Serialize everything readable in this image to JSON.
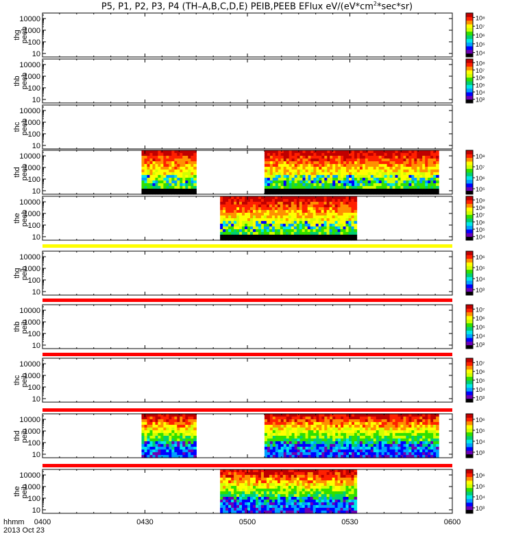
{
  "title": {
    "prefix": "P5, P1, P2, P3, P4 (TH–A,B,C,D,E) PEIB,PEEB EFlux eV/(eV*cm",
    "sup": "2",
    "suffix": "*sec*sr)"
  },
  "colorscale": [
    "#000000",
    "#6e00b4",
    "#0000ff",
    "#00a0ff",
    "#00e8e8",
    "#00d070",
    "#30e000",
    "#d0ff00",
    "#ffff00",
    "#ff9000",
    "#ff2000",
    "#c00000"
  ],
  "panels": [
    {
      "name": "thg-peeb",
      "ylabel": [
        "thg",
        "peeb"
      ],
      "yticks": [
        "10",
        "100",
        "1000",
        "10000"
      ],
      "cbar": {
        "ticks": [
          "10⁴",
          "10⁵",
          "10⁶",
          "10⁷",
          "10⁸"
        ]
      },
      "blocks": []
    },
    {
      "name": "thb-peeb",
      "ylabel": [
        "thb",
        "peeb"
      ],
      "yticks": [
        "10",
        "100",
        "1000",
        "10000"
      ],
      "cbar": {
        "ticks": [
          "10³",
          "10⁴",
          "10⁵",
          "10⁶",
          "10⁷",
          "10⁸"
        ]
      },
      "blocks": []
    },
    {
      "name": "thc-peeb",
      "ylabel": [
        "thc",
        "peeb"
      ],
      "yticks": [
        "10",
        "100",
        "1000",
        "10000"
      ],
      "cbar": null,
      "blocks": []
    },
    {
      "name": "thd-peeb",
      "ylabel": [
        "thd",
        "peeb"
      ],
      "yticks": [
        "10",
        "100",
        "1000",
        "10000"
      ],
      "cbar": {
        "ticks": [
          "10⁵",
          "10⁶",
          "10⁷",
          "10⁸"
        ]
      },
      "blocks": [
        {
          "t0": "04:29",
          "t1": "04:45",
          "kind": "electron"
        },
        {
          "t0": "05:05",
          "t1": "05:56",
          "kind": "electron"
        }
      ]
    },
    {
      "name": "the-peeb",
      "ylabel": [
        "the",
        "peeb"
      ],
      "yticks": [
        "10",
        "100",
        "1000",
        "10000"
      ],
      "cbar": {
        "ticks": [
          "10⁴",
          "10⁵",
          "10⁶",
          "10⁷",
          "10⁸",
          "10⁹"
        ]
      },
      "blocks": [
        {
          "t0": "04:52",
          "t1": "05:32",
          "kind": "electron"
        }
      ]
    },
    {
      "name": "thg-peib",
      "ylabel": [
        "thg",
        "peib"
      ],
      "yticks": [
        "10",
        "100",
        "1000",
        "10000"
      ],
      "cbar": {
        "ticks": [
          "10³",
          "10⁴",
          "10⁵",
          "10⁶"
        ]
      },
      "blocks": [],
      "bar": "#ffff00"
    },
    {
      "name": "thb-peib",
      "ylabel": [
        "thb",
        "peib"
      ],
      "yticks": [
        "10",
        "100",
        "1000",
        "10000"
      ],
      "cbar": {
        "ticks": [
          "10³",
          "10⁴",
          "10⁵",
          "10⁶",
          "10⁷"
        ]
      },
      "blocks": [],
      "bar": "#ff0000"
    },
    {
      "name": "thc-peib",
      "ylabel": [
        "thc",
        "peib"
      ],
      "yticks": [
        "10",
        "100",
        "1000",
        "10000"
      ],
      "cbar": {
        "ticks": [
          "10³",
          "10⁴",
          "10⁵",
          "10⁶",
          "10⁷"
        ]
      },
      "blocks": [],
      "bar": "#ff0000"
    },
    {
      "name": "thd-peib",
      "ylabel": [
        "thd",
        "peib"
      ],
      "yticks": [
        "10",
        "100",
        "1000",
        "10000"
      ],
      "cbar": {
        "ticks": [
          "10³",
          "10⁴",
          "10⁵",
          "10⁶"
        ]
      },
      "blocks": [
        {
          "t0": "04:29",
          "t1": "04:45",
          "kind": "ion"
        },
        {
          "t0": "05:05",
          "t1": "05:56",
          "kind": "ion"
        }
      ],
      "bar": "#ff0000"
    },
    {
      "name": "the-peib",
      "ylabel": [
        "the",
        "peib"
      ],
      "yticks": [
        "10",
        "100",
        "1000",
        "10000"
      ],
      "cbar": {
        "ticks": [
          "10³",
          "10⁴",
          "10⁵",
          "10⁶"
        ]
      },
      "blocks": [
        {
          "t0": "04:52",
          "t1": "05:32",
          "kind": "ion"
        }
      ],
      "bar": "#ff0000"
    }
  ],
  "chart_data": {
    "type": "heatmap",
    "title": "P5, P1, P2, P3, P4 (TH–A,B,C,D,E) PEIB,PEEB EFlux eV/(eV*cm2*sec*sr)",
    "xlabel": "hhmm",
    "date": "2013 Oct 23",
    "xticks": [
      "0400",
      "0430",
      "0500",
      "0530",
      "0600"
    ],
    "xlim": [
      "04:00",
      "06:00"
    ],
    "yscale": "log",
    "ylim": [
      5,
      30000
    ],
    "yticks": [
      10,
      100,
      1000,
      10000
    ],
    "zscale": "log",
    "series": [
      {
        "name": "thg peeb",
        "intervals": []
      },
      {
        "name": "thb peeb",
        "intervals": []
      },
      {
        "name": "thc peeb",
        "intervals": []
      },
      {
        "name": "thd peeb",
        "intervals": [
          [
            "04:29",
            "04:45"
          ],
          [
            "05:05",
            "05:56"
          ]
        ]
      },
      {
        "name": "the peeb",
        "intervals": [
          [
            "04:52",
            "05:32"
          ]
        ]
      },
      {
        "name": "thg peib",
        "intervals": []
      },
      {
        "name": "thb peib",
        "intervals": []
      },
      {
        "name": "thc peib",
        "intervals": []
      },
      {
        "name": "thd peib",
        "intervals": [
          [
            "04:29",
            "04:45"
          ],
          [
            "05:05",
            "05:56"
          ]
        ]
      },
      {
        "name": "the peib",
        "intervals": [
          [
            "04:52",
            "05:32"
          ]
        ]
      }
    ]
  },
  "xaxis": {
    "label": "hhmm",
    "date": "2013 Oct 23",
    "ticks": [
      {
        "label": "0400",
        "t": "04:00"
      },
      {
        "label": "0430",
        "t": "04:30"
      },
      {
        "label": "0500",
        "t": "05:00"
      },
      {
        "label": "0530",
        "t": "05:30"
      },
      {
        "label": "0600",
        "t": "06:00"
      }
    ]
  }
}
